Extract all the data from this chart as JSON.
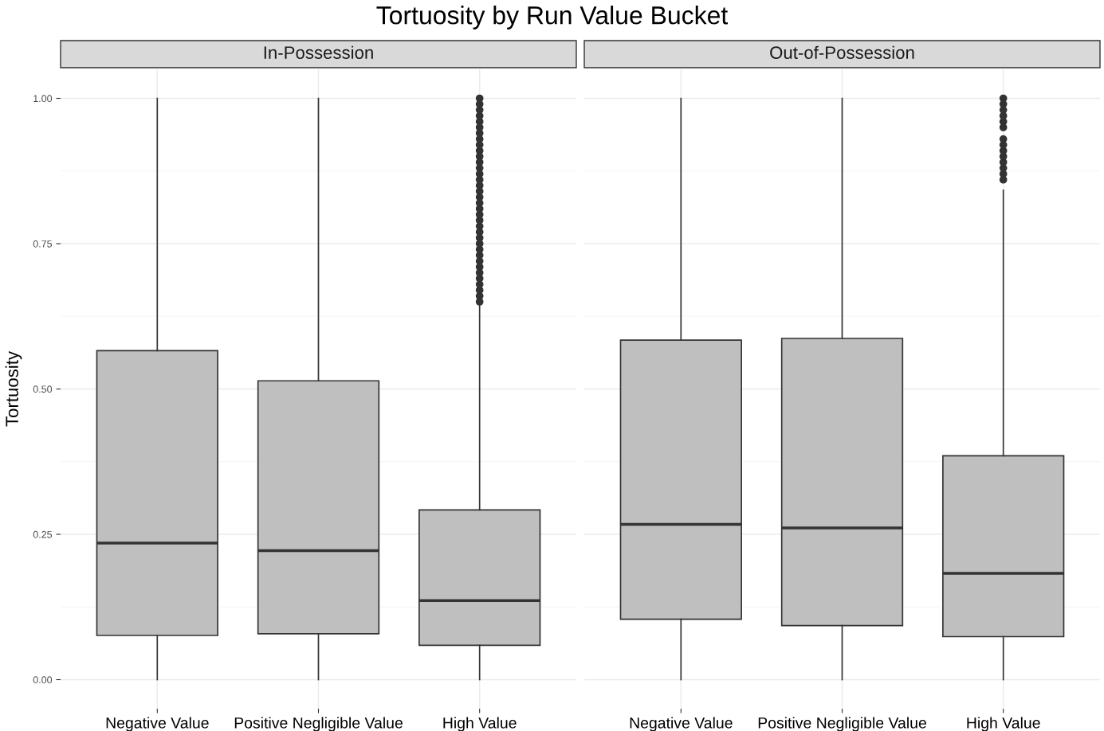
{
  "chart_data": [
    {
      "type": "box",
      "title": "Tortuosity by Run Value Bucket",
      "subtitle": "In-Possession",
      "ylabel": "Tortuosity",
      "categories": [
        "Negative Value",
        "Positive Negligible Value",
        "High Value"
      ],
      "ylim": [
        -0.05,
        1.05
      ],
      "yticks": [
        {
          "value": 0,
          "label": "0.00"
        },
        {
          "value": 0.25,
          "label": "0.25"
        },
        {
          "value": 0.5,
          "label": "0.50"
        },
        {
          "value": 0.75,
          "label": "0.75"
        },
        {
          "value": 1,
          "label": "1.00"
        }
      ],
      "grid": true,
      "boxes": [
        {
          "low": 0,
          "q1": 0.076,
          "median": 0.235,
          "q3": 0.566,
          "high": 1.0
        },
        {
          "low": 0,
          "q1": 0.079,
          "median": 0.222,
          "q3": 0.514,
          "high": 1.0
        },
        {
          "low": 0,
          "q1": 0.059,
          "median": 0.136,
          "q3": 0.292,
          "high": 0.644,
          "outliers": [
            0.65,
            0.66,
            0.67,
            0.68,
            0.69,
            0.7,
            0.71,
            0.72,
            0.73,
            0.74,
            0.75,
            0.76,
            0.77,
            0.78,
            0.79,
            0.8,
            0.81,
            0.82,
            0.83,
            0.84,
            0.85,
            0.86,
            0.87,
            0.88,
            0.89,
            0.9,
            0.91,
            0.92,
            0.93,
            0.94,
            0.95,
            0.96,
            0.97,
            0.98,
            0.99,
            1.0
          ]
        }
      ]
    },
    {
      "type": "box",
      "subtitle": "Out-of-Possession",
      "categories": [
        "Negative Value",
        "Positive Negligible Value",
        "High Value"
      ],
      "ylim": [
        -0.05,
        1.05
      ],
      "grid": true,
      "tick_labels": "x",
      "boxes": [
        {
          "low": 0,
          "q1": 0.104,
          "median": 0.267,
          "q3": 0.584,
          "high": 1.0
        },
        {
          "low": 0,
          "q1": 0.093,
          "median": 0.261,
          "q3": 0.587,
          "high": 1.0
        },
        {
          "low": 0,
          "q1": 0.074,
          "median": 0.183,
          "q3": 0.385,
          "high": 0.842,
          "outliers": [
            0.86,
            0.87,
            0.88,
            0.89,
            0.9,
            0.91,
            0.92,
            0.93,
            0.95,
            0.96,
            0.97,
            0.98,
            0.99,
            1.0
          ]
        }
      ]
    }
  ]
}
